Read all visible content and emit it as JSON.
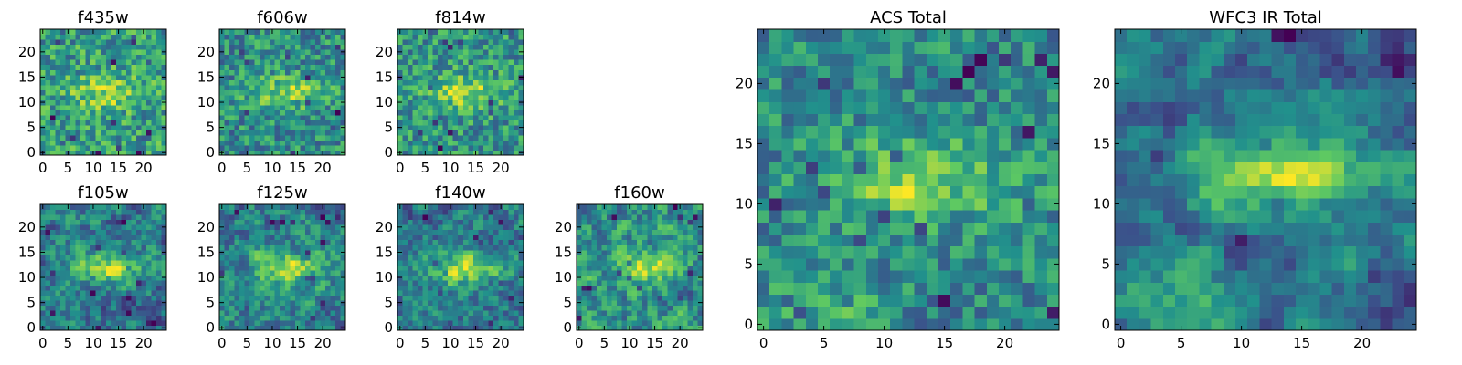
{
  "colormap": [
    "#440154",
    "#3b528b",
    "#21918c",
    "#5ec962",
    "#fde725"
  ],
  "chart_data": [
    {
      "type": "heatmap",
      "title": "f435w",
      "grid": [
        25,
        25
      ],
      "xticks": [
        0,
        5,
        10,
        15,
        20
      ],
      "yticks": [
        0,
        5,
        10,
        15,
        20
      ],
      "xlim": [
        -0.5,
        24.5
      ],
      "ylim": [
        -0.5,
        24.5
      ],
      "seed": 11,
      "blob": 0.45,
      "smooth": 0.0,
      "corner": 0.0
    },
    {
      "type": "heatmap",
      "title": "f606w",
      "grid": [
        25,
        25
      ],
      "xticks": [
        0,
        5,
        10,
        15,
        20
      ],
      "yticks": [
        0,
        5,
        10,
        15,
        20
      ],
      "xlim": [
        -0.5,
        24.5
      ],
      "ylim": [
        -0.5,
        24.5
      ],
      "seed": 23,
      "blob": 0.55,
      "smooth": 0.0,
      "corner": 0.0
    },
    {
      "type": "heatmap",
      "title": "f814w",
      "grid": [
        25,
        25
      ],
      "xticks": [
        0,
        5,
        10,
        15,
        20
      ],
      "yticks": [
        0,
        5,
        10,
        15,
        20
      ],
      "xlim": [
        -0.5,
        24.5
      ],
      "ylim": [
        -0.5,
        24.5
      ],
      "seed": 37,
      "blob": 0.55,
      "smooth": 0.0,
      "corner": 0.0
    },
    {
      "type": "heatmap",
      "title": "f105w",
      "grid": [
        25,
        25
      ],
      "xticks": [
        0,
        5,
        10,
        15,
        20
      ],
      "yticks": [
        0,
        5,
        10,
        15,
        20
      ],
      "xlim": [
        -0.5,
        24.5
      ],
      "ylim": [
        -0.5,
        24.5
      ],
      "seed": 41,
      "blob": 0.5,
      "smooth": 0.5,
      "corner": 0.0
    },
    {
      "type": "heatmap",
      "title": "f125w",
      "grid": [
        25,
        25
      ],
      "xticks": [
        0,
        5,
        10,
        15,
        20
      ],
      "yticks": [
        0,
        5,
        10,
        15,
        20
      ],
      "xlim": [
        -0.5,
        24.5
      ],
      "ylim": [
        -0.5,
        24.5
      ],
      "seed": 53,
      "blob": 0.5,
      "smooth": 0.5,
      "corner": 0.0
    },
    {
      "type": "heatmap",
      "title": "f140w",
      "grid": [
        25,
        25
      ],
      "xticks": [
        0,
        5,
        10,
        15,
        20
      ],
      "yticks": [
        0,
        5,
        10,
        15,
        20
      ],
      "xlim": [
        -0.5,
        24.5
      ],
      "ylim": [
        -0.5,
        24.5
      ],
      "seed": 67,
      "blob": 0.55,
      "smooth": 0.5,
      "corner": 0.0
    },
    {
      "type": "heatmap",
      "title": "f160w",
      "grid": [
        25,
        25
      ],
      "xticks": [
        0,
        5,
        10,
        15,
        20
      ],
      "yticks": [
        0,
        5,
        10,
        15,
        20
      ],
      "xlim": [
        -0.5,
        24.5
      ],
      "ylim": [
        -0.5,
        24.5
      ],
      "seed": 79,
      "blob": 0.4,
      "smooth": 0.5,
      "corner": 0.0
    },
    {
      "type": "heatmap",
      "title": "ACS Total",
      "grid": [
        25,
        25
      ],
      "xticks": [
        0,
        5,
        10,
        15,
        20
      ],
      "yticks": [
        0,
        5,
        10,
        15,
        20
      ],
      "xlim": [
        -0.5,
        24.5
      ],
      "ylim": [
        -0.5,
        24.5
      ],
      "seed": 97,
      "blob": 0.6,
      "smooth": 0.2,
      "corner": 0.25
    },
    {
      "type": "heatmap",
      "title": "WFC3 IR Total",
      "grid": [
        25,
        25
      ],
      "xticks": [
        0,
        5,
        10,
        15,
        20
      ],
      "yticks": [
        0,
        5,
        10,
        15,
        20
      ],
      "xlim": [
        -0.5,
        24.5
      ],
      "ylim": [
        -0.5,
        24.5
      ],
      "seed": 113,
      "blob": 0.6,
      "smooth": 0.7,
      "corner": 0.4
    }
  ]
}
